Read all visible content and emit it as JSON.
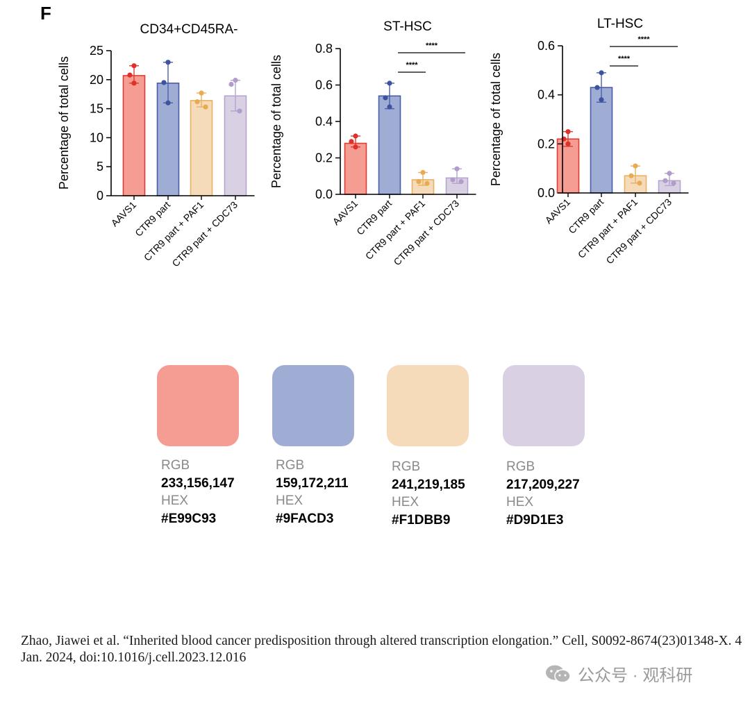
{
  "panel_label": "F",
  "chart_data": [
    {
      "type": "bar",
      "title": "CD34+CD45RA-",
      "ylabel": "Percentage of total cells",
      "xlabel": "",
      "categories": [
        "AAVS1",
        "CTR9 part",
        "CTR9 part + PAF1",
        "CTR9 part + CDC73"
      ],
      "values": [
        20.7,
        19.4,
        16.4,
        17.2
      ],
      "error_low": [
        19.4,
        16.0,
        15.3,
        14.6
      ],
      "error_high": [
        22.4,
        23.0,
        17.7,
        19.9
      ],
      "points": [
        [
          22.4,
          20.8,
          19.4
        ],
        [
          23.0,
          19.5,
          16.0
        ],
        [
          17.7,
          16.2,
          15.3
        ],
        [
          19.9,
          19.2,
          14.6
        ]
      ],
      "ylim": [
        0,
        25
      ],
      "yticks": [
        "0",
        "5",
        "10",
        "15",
        "20",
        "25"
      ],
      "significance": []
    },
    {
      "type": "bar",
      "title": "ST-HSC",
      "ylabel": "Percentage of total cells",
      "xlabel": "",
      "categories": [
        "AAVS1",
        "CTR9 part",
        "CTR9 part + PAF1",
        "CTR9 part + CDC73"
      ],
      "values": [
        0.28,
        0.54,
        0.08,
        0.09
      ],
      "error_low": [
        0.26,
        0.47,
        0.05,
        0.06
      ],
      "error_high": [
        0.32,
        0.61,
        0.12,
        0.14
      ],
      "points": [
        [
          0.32,
          0.29,
          0.26
        ],
        [
          0.61,
          0.53,
          0.48
        ],
        [
          0.12,
          0.07,
          0.06
        ],
        [
          0.14,
          0.08,
          0.07
        ]
      ],
      "ylim": [
        0,
        0.8
      ],
      "yticks": [
        "0.0",
        "0.2",
        "0.4",
        "0.6",
        "0.8"
      ],
      "significance": [
        {
          "from": 1,
          "to": 2,
          "label": "****"
        },
        {
          "from": 1,
          "to": 3,
          "label": "****"
        }
      ]
    },
    {
      "type": "bar",
      "title": "LT-HSC",
      "ylabel": "Percentage of total cells",
      "xlabel": "",
      "categories": [
        "AAVS1",
        "CTR9 part",
        "CTR9 part + PAF1",
        "CTR9 part + CDC73"
      ],
      "values": [
        0.22,
        0.43,
        0.07,
        0.05
      ],
      "error_low": [
        0.19,
        0.37,
        0.04,
        0.03
      ],
      "error_high": [
        0.25,
        0.49,
        0.11,
        0.08
      ],
      "points": [
        [
          0.25,
          0.22,
          0.2
        ],
        [
          0.49,
          0.43,
          0.38
        ],
        [
          0.11,
          0.07,
          0.04
        ],
        [
          0.08,
          0.05,
          0.04
        ]
      ],
      "ylim": [
        0,
        0.6
      ],
      "yticks": [
        "0.0",
        "0.2",
        "0.4",
        "0.6"
      ],
      "significance": [
        {
          "from": 1,
          "to": 2,
          "label": "****"
        },
        {
          "from": 1,
          "to": 3,
          "label": "****"
        }
      ]
    }
  ],
  "series_colors": {
    "fill": [
      "#F59C93",
      "#9FACD3",
      "#F5DBB9",
      "#D9D1E3"
    ],
    "edge": [
      "#E03C33",
      "#4A5EA8",
      "#E8B060",
      "#B6A3CF"
    ],
    "dot": [
      "#E0302A",
      "#3E53A0",
      "#E8AC50",
      "#B19CCB"
    ]
  },
  "palette": [
    {
      "rgb_label": "RGB",
      "rgb": "233,156,147",
      "hex_label": "HEX",
      "hex": "#E99C93",
      "color": "#F59C93"
    },
    {
      "rgb_label": "RGB",
      "rgb": "159,172,211",
      "hex_label": "HEX",
      "hex": "#9FACD3",
      "color": "#9FACD3"
    },
    {
      "rgb_label": "RGB",
      "rgb": "241,219,185",
      "hex_label": "HEX",
      "hex": "#F1DBB9",
      "color": "#F5DBB9"
    },
    {
      "rgb_label": "RGB",
      "rgb": "217,209,227",
      "hex_label": "HEX",
      "hex": "#D9D1E3",
      "color": "#D9D1E3"
    }
  ],
  "citation": "Zhao, Jiawei et al. “Inherited blood cancer predisposition through altered transcription elongation.” Cell, S0092-8674(23)01348-X. 4 Jan. 2024, doi:10.1016/j.cell.2023.12.016",
  "watermark": "公众号 · 观科研",
  "watermark_icon": "wechat-icon"
}
